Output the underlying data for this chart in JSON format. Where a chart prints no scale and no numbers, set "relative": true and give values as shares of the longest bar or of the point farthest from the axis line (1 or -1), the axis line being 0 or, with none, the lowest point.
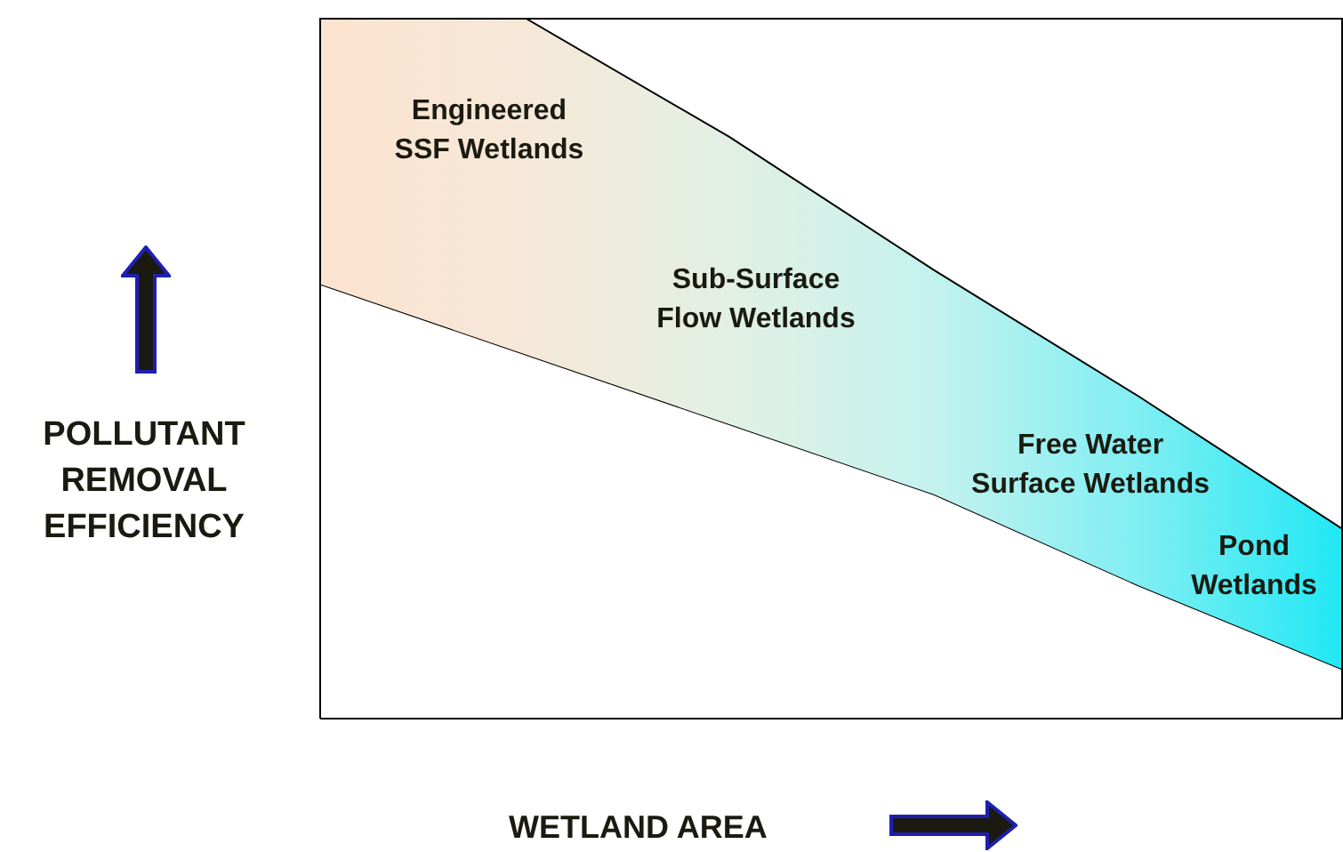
{
  "chart_data": {
    "type": "area",
    "relative": true,
    "stacked": true,
    "xlabel": "WETLAND AREA",
    "ylabel": "POLLUTANT REMOVAL EFFICIENCY",
    "categories": [
      null,
      null,
      null,
      null,
      null,
      null
    ],
    "series": [
      {
        "color": "#ffffff",
        "values": [
          0.62,
          0.52,
          0.42,
          0.32,
          0.19,
          0.07
        ]
      },
      {
        "colors": [
          "#fce3cf",
          "#f6e8d8",
          "#e2f0e4",
          "#c4f2ee",
          "#80eef2",
          "#20e8f4"
        ],
        "values": [
          0.38,
          0.48,
          0.41,
          0.32,
          0.27,
          0.2
        ]
      }
    ],
    "annotations": [
      "Engineered\nSSF Wetlands",
      "Sub-Surface\nFlow Wetlands",
      "Free Water\nSurface Wetlands",
      "Pond\nWetlands"
    ]
  }
}
